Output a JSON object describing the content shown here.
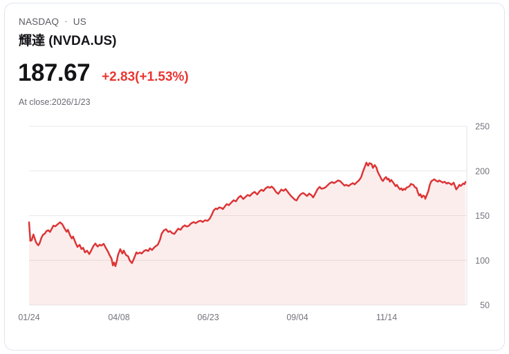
{
  "header": {
    "exchange": "NASDAQ",
    "separator": "·",
    "market": "US",
    "title": "輝達 (NVDA.US)",
    "price": "187.67",
    "change": "+2.83(+1.53%)",
    "as_of": "At close:2026/1/23"
  },
  "colors": {
    "line": "#dd3435",
    "fill": "rgba(221,54,55,0.09)",
    "change_text": "#ea3531",
    "grid": "#e9e9ec",
    "axis": "#dfe0e5",
    "axis_text": "#73747e"
  },
  "chart_data": {
    "type": "area",
    "title": "NVDA.US 1-year daily close price",
    "xlabel": "",
    "ylabel": "",
    "ylim": [
      50,
      250
    ],
    "yticks": [
      250,
      200,
      150,
      100,
      50
    ],
    "grid": true,
    "legend_position": "none",
    "xticks": [
      {
        "f": 0.0,
        "label": "01/24"
      },
      {
        "f": 0.206,
        "label": "04/08"
      },
      {
        "f": 0.4105,
        "label": "06/23"
      },
      {
        "f": 0.6149,
        "label": "09/04"
      },
      {
        "f": 0.8193,
        "label": "11/14"
      }
    ],
    "points": [
      [
        0.0,
        142.6
      ],
      [
        0.003,
        121.8
      ],
      [
        0.006,
        122.5
      ],
      [
        0.01,
        128.9
      ],
      [
        0.013,
        124.5
      ],
      [
        0.016,
        120.1
      ],
      [
        0.021,
        116.8
      ],
      [
        0.024,
        118.7
      ],
      [
        0.028,
        124.8
      ],
      [
        0.032,
        128.7
      ],
      [
        0.036,
        129.8
      ],
      [
        0.04,
        132.8
      ],
      [
        0.044,
        133.6
      ],
      [
        0.048,
        131.8
      ],
      [
        0.052,
        135.3
      ],
      [
        0.056,
        138.9
      ],
      [
        0.06,
        138.0
      ],
      [
        0.065,
        140.1
      ],
      [
        0.071,
        142.5
      ],
      [
        0.076,
        140.5
      ],
      [
        0.081,
        136.0
      ],
      [
        0.086,
        132.0
      ],
      [
        0.089,
        134.2
      ],
      [
        0.094,
        128.0
      ],
      [
        0.098,
        124.5
      ],
      [
        0.101,
        126.6
      ],
      [
        0.106,
        120.2
      ],
      [
        0.111,
        115.0
      ],
      [
        0.116,
        117.3
      ],
      [
        0.12,
        112.7
      ],
      [
        0.124,
        114.0
      ],
      [
        0.128,
        108.9
      ],
      [
        0.133,
        110.8
      ],
      [
        0.138,
        107.0
      ],
      [
        0.143,
        111.5
      ],
      [
        0.147,
        115.7
      ],
      [
        0.152,
        118.8
      ],
      [
        0.157,
        115.4
      ],
      [
        0.162,
        117.5
      ],
      [
        0.166,
        116.5
      ],
      [
        0.171,
        118.5
      ],
      [
        0.176,
        113.8
      ],
      [
        0.181,
        109.7
      ],
      [
        0.185,
        105.4
      ],
      [
        0.189,
        101.8
      ],
      [
        0.192,
        94.3
      ],
      [
        0.195,
        97.6
      ],
      [
        0.198,
        93.5
      ],
      [
        0.201,
        99.0
      ],
      [
        0.204,
        106.2
      ],
      [
        0.209,
        112.5
      ],
      [
        0.214,
        107.6
      ],
      [
        0.217,
        110.9
      ],
      [
        0.222,
        106.0
      ],
      [
        0.227,
        104.5
      ],
      [
        0.231,
        99.5
      ],
      [
        0.236,
        96.9
      ],
      [
        0.241,
        102.7
      ],
      [
        0.246,
        108.9
      ],
      [
        0.249,
        107.5
      ],
      [
        0.254,
        108.7
      ],
      [
        0.258,
        107.6
      ],
      [
        0.263,
        110.2
      ],
      [
        0.268,
        111.6
      ],
      [
        0.273,
        110.5
      ],
      [
        0.277,
        113.5
      ],
      [
        0.282,
        111.6
      ],
      [
        0.287,
        114.5
      ],
      [
        0.29,
        115.7
      ],
      [
        0.295,
        117.4
      ],
      [
        0.3,
        123.0
      ],
      [
        0.304,
        129.9
      ],
      [
        0.309,
        133.5
      ],
      [
        0.314,
        134.8
      ],
      [
        0.319,
        131.8
      ],
      [
        0.323,
        132.8
      ],
      [
        0.328,
        130.5
      ],
      [
        0.333,
        129.5
      ],
      [
        0.338,
        133.0
      ],
      [
        0.342,
        135.5
      ],
      [
        0.347,
        134.2
      ],
      [
        0.352,
        137.4
      ],
      [
        0.357,
        139.2
      ],
      [
        0.361,
        137.8
      ],
      [
        0.366,
        138.6
      ],
      [
        0.371,
        141.2
      ],
      [
        0.377,
        142.8
      ],
      [
        0.382,
        141.6
      ],
      [
        0.388,
        143.6
      ],
      [
        0.393,
        144.4
      ],
      [
        0.398,
        142.9
      ],
      [
        0.403,
        144.8
      ],
      [
        0.409,
        144.2
      ],
      [
        0.414,
        146.5
      ],
      [
        0.418,
        150.3
      ],
      [
        0.423,
        155.8
      ],
      [
        0.428,
        158.0
      ],
      [
        0.431,
        157.2
      ],
      [
        0.436,
        159.3
      ],
      [
        0.441,
        158.6
      ],
      [
        0.444,
        157.3
      ],
      [
        0.449,
        160.5
      ],
      [
        0.453,
        162.9
      ],
      [
        0.458,
        161.7
      ],
      [
        0.464,
        164.9
      ],
      [
        0.469,
        167.2
      ],
      [
        0.474,
        166.0
      ],
      [
        0.48,
        170.4
      ],
      [
        0.485,
        172.2
      ],
      [
        0.491,
        168.6
      ],
      [
        0.496,
        171.0
      ],
      [
        0.501,
        173.2
      ],
      [
        0.506,
        172.0
      ],
      [
        0.512,
        175.2
      ],
      [
        0.517,
        176.6
      ],
      [
        0.523,
        173.7
      ],
      [
        0.528,
        177.2
      ],
      [
        0.533,
        179.0
      ],
      [
        0.537,
        177.6
      ],
      [
        0.542,
        180.6
      ],
      [
        0.547,
        182.3
      ],
      [
        0.552,
        181.2
      ],
      [
        0.556,
        182.6
      ],
      [
        0.561,
        180.3
      ],
      [
        0.566,
        176.5
      ],
      [
        0.571,
        174.4
      ],
      [
        0.574,
        176.4
      ],
      [
        0.578,
        179.2
      ],
      [
        0.583,
        177.8
      ],
      [
        0.588,
        179.7
      ],
      [
        0.594,
        175.9
      ],
      [
        0.599,
        172.7
      ],
      [
        0.604,
        170.3
      ],
      [
        0.609,
        167.8
      ],
      [
        0.613,
        167.0
      ],
      [
        0.618,
        171.4
      ],
      [
        0.623,
        174.1
      ],
      [
        0.628,
        175.4
      ],
      [
        0.632,
        174.0
      ],
      [
        0.637,
        172.0
      ],
      [
        0.642,
        174.6
      ],
      [
        0.647,
        172.9
      ],
      [
        0.651,
        170.4
      ],
      [
        0.656,
        174.6
      ],
      [
        0.661,
        179.6
      ],
      [
        0.666,
        182.2
      ],
      [
        0.67,
        180.1
      ],
      [
        0.675,
        180.6
      ],
      [
        0.68,
        182.0
      ],
      [
        0.685,
        184.4
      ],
      [
        0.689,
        186.2
      ],
      [
        0.694,
        187.6
      ],
      [
        0.699,
        186.4
      ],
      [
        0.704,
        188.0
      ],
      [
        0.708,
        189.4
      ],
      [
        0.713,
        188.6
      ],
      [
        0.718,
        186.0
      ],
      [
        0.723,
        183.6
      ],
      [
        0.727,
        184.6
      ],
      [
        0.732,
        183.1
      ],
      [
        0.737,
        185.0
      ],
      [
        0.742,
        186.4
      ],
      [
        0.746,
        185.0
      ],
      [
        0.751,
        187.4
      ],
      [
        0.756,
        189.4
      ],
      [
        0.761,
        193.0
      ],
      [
        0.765,
        199.0
      ],
      [
        0.77,
        205.4
      ],
      [
        0.773,
        209.3
      ],
      [
        0.777,
        205.8
      ],
      [
        0.78,
        208.8
      ],
      [
        0.785,
        207.8
      ],
      [
        0.788,
        203.4
      ],
      [
        0.792,
        206.6
      ],
      [
        0.796,
        203.9
      ],
      [
        0.799,
        199.0
      ],
      [
        0.802,
        196.1
      ],
      [
        0.805,
        193.4
      ],
      [
        0.808,
        190.4
      ],
      [
        0.811,
        188.8
      ],
      [
        0.815,
        191.9
      ],
      [
        0.818,
        193.2
      ],
      [
        0.821,
        190.4
      ],
      [
        0.824,
        191.4
      ],
      [
        0.827,
        188.0
      ],
      [
        0.83,
        190.0
      ],
      [
        0.834,
        187.4
      ],
      [
        0.837,
        185.4
      ],
      [
        0.84,
        183.0
      ],
      [
        0.843,
        184.5
      ],
      [
        0.846,
        181.9
      ],
      [
        0.85,
        179.4
      ],
      [
        0.853,
        180.6
      ],
      [
        0.856,
        178.4
      ],
      [
        0.859,
        180.0
      ],
      [
        0.862,
        179.0
      ],
      [
        0.865,
        181.4
      ],
      [
        0.868,
        181.9
      ],
      [
        0.872,
        183.0
      ],
      [
        0.875,
        185.5
      ],
      [
        0.878,
        184.9
      ],
      [
        0.881,
        184.4
      ],
      [
        0.884,
        182.0
      ],
      [
        0.888,
        180.9
      ],
      [
        0.891,
        176.0
      ],
      [
        0.894,
        172.5
      ],
      [
        0.897,
        174.0
      ],
      [
        0.9,
        170.4
      ],
      [
        0.903,
        172.5
      ],
      [
        0.907,
        171.4
      ],
      [
        0.908,
        168.8
      ],
      [
        0.911,
        172.5
      ],
      [
        0.915,
        177.6
      ],
      [
        0.918,
        184.0
      ],
      [
        0.921,
        188.0
      ],
      [
        0.924,
        189.3
      ],
      [
        0.929,
        190.6
      ],
      [
        0.932,
        189.3
      ],
      [
        0.937,
        188.0
      ],
      [
        0.94,
        189.4
      ],
      [
        0.945,
        188.0
      ],
      [
        0.948,
        187.0
      ],
      [
        0.952,
        188.0
      ],
      [
        0.957,
        185.8
      ],
      [
        0.96,
        186.9
      ],
      [
        0.965,
        185.8
      ],
      [
        0.968,
        184.5
      ],
      [
        0.973,
        186.9
      ],
      [
        0.976,
        183.0
      ],
      [
        0.979,
        179.4
      ],
      [
        0.983,
        181.9
      ],
      [
        0.986,
        184.5
      ],
      [
        0.989,
        183.2
      ],
      [
        0.992,
        184.5
      ],
      [
        0.995,
        186.0
      ],
      [
        0.998,
        185.2
      ],
      [
        1.0,
        187.67
      ]
    ]
  }
}
